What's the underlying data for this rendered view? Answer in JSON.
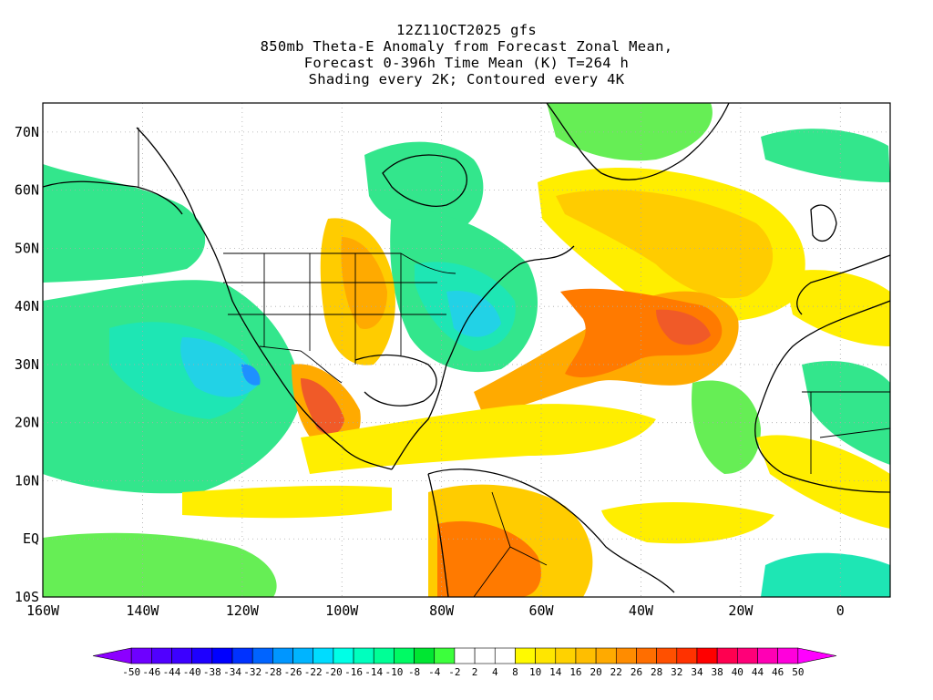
{
  "title": {
    "line1": "12Z11OCT2025 gfs",
    "line2": "850mb Theta-E Anomaly from Forecast Zonal Mean,",
    "line3": "Forecast 0-396h Time Mean (K) T=264 h",
    "line4": "Shading every 2K; Contoured every 4K"
  },
  "axes": {
    "lat_labels": [
      "70N",
      "60N",
      "50N",
      "40N",
      "30N",
      "20N",
      "10N",
      "EQ",
      "10S"
    ],
    "lon_labels": [
      "160W",
      "140W",
      "120W",
      "100W",
      "80W",
      "60W",
      "40W",
      "20W",
      "0"
    ]
  },
  "colorbar": {
    "labels": [
      "-50",
      "-46",
      "-44",
      "-40",
      "-38",
      "-34",
      "-32",
      "-28",
      "-26",
      "-22",
      "-20",
      "-16",
      "-14",
      "-10",
      "-8",
      "-4",
      "-2",
      "2",
      "4",
      "8",
      "10",
      "14",
      "16",
      "20",
      "22",
      "26",
      "28",
      "32",
      "34",
      "38",
      "40",
      "44",
      "46",
      "50"
    ],
    "colors": [
      "#8c00ff",
      "#6e00ff",
      "#5000ff",
      "#3c00ff",
      "#1e00ff",
      "#0000ff",
      "#0032ff",
      "#0064ff",
      "#0096ff",
      "#00b4ff",
      "#00dcff",
      "#00ffe6",
      "#00ffbe",
      "#00ff96",
      "#00fa64",
      "#00e632",
      "#3cff3c",
      "#ffffff",
      "#ffffff",
      "#ffffff",
      "#fffa00",
      "#ffe600",
      "#ffd200",
      "#ffbe00",
      "#ffaa00",
      "#ff8c00",
      "#ff6e00",
      "#ff5000",
      "#ff3200",
      "#ff0000",
      "#ff0050",
      "#ff0078",
      "#ff00b4",
      "#ff00dc",
      "#ff00ff"
    ]
  },
  "shading_colors": {
    "ocean_green": "#33e68c",
    "teal": "#1ee6b4",
    "cyan": "#22d2e6",
    "blue": "#1e90ff",
    "light_green": "#66ee55",
    "yellow": "#ffee00",
    "light_orange": "#ffcc00",
    "orange": "#ffaa00",
    "dark_orange": "#ff7a00",
    "red_orange": "#f05a28"
  }
}
